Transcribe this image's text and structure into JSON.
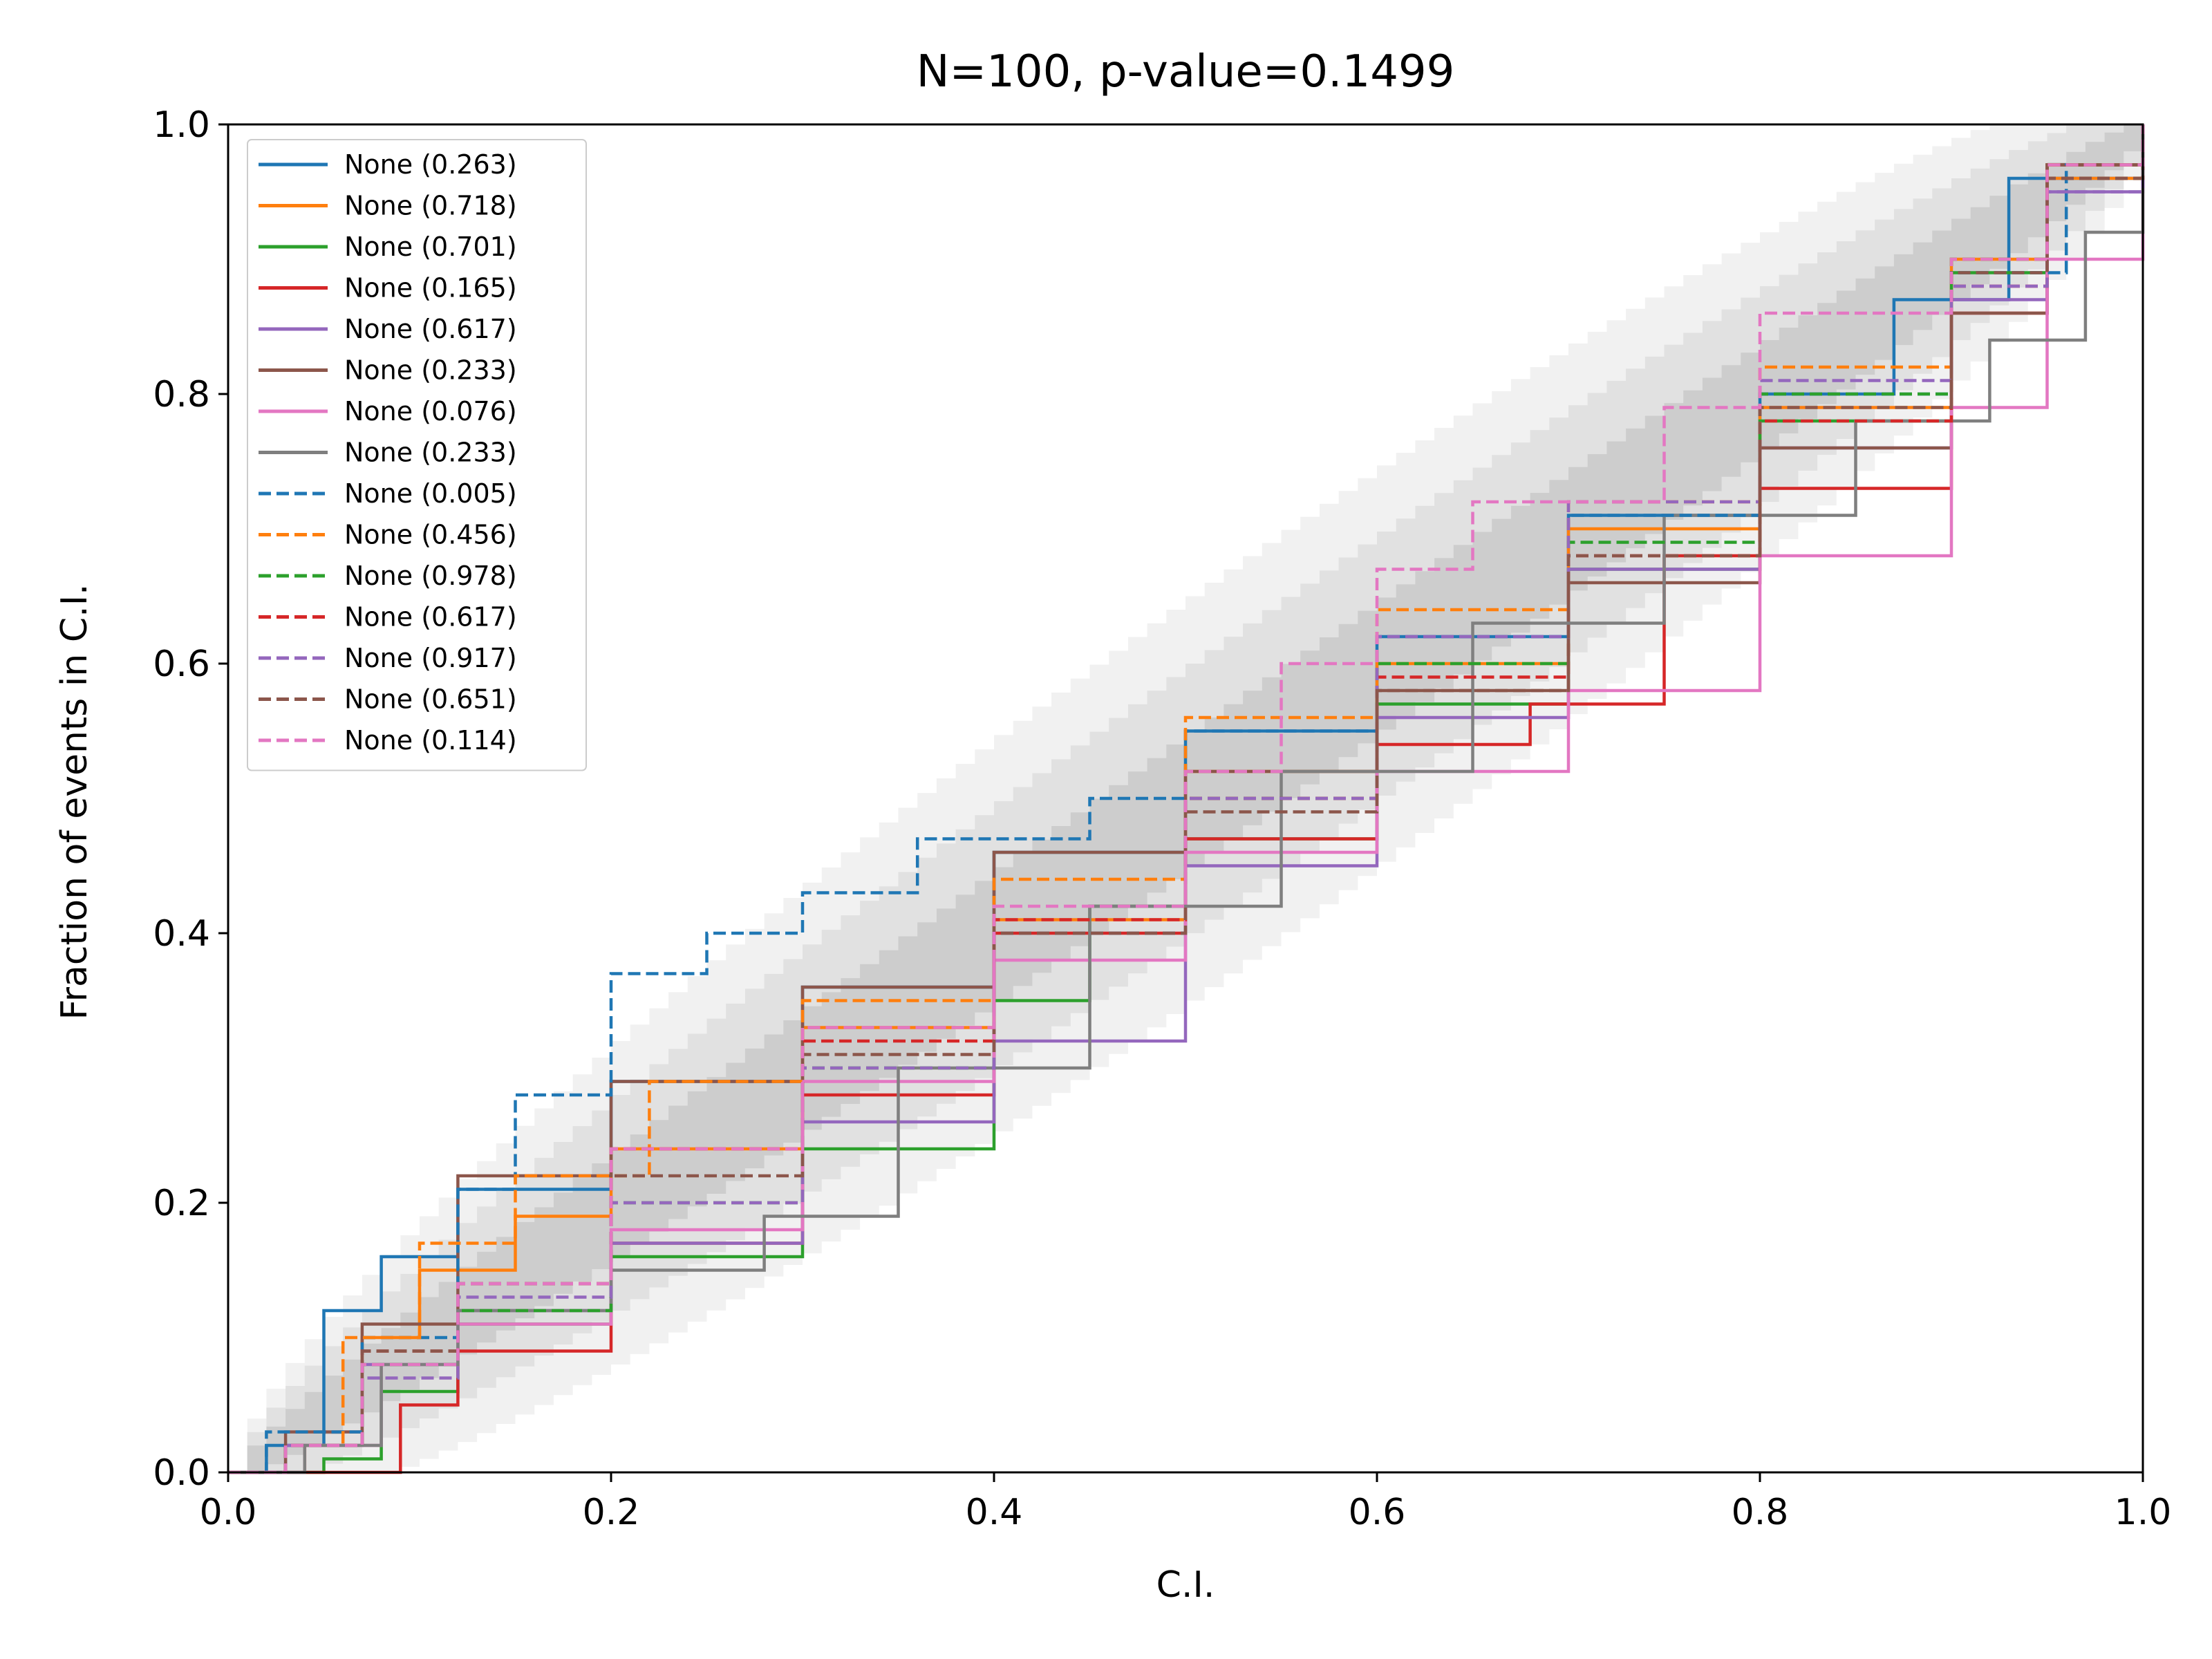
{
  "chart_data": {
    "type": "line",
    "title": "N=100, p-value=0.1499",
    "xlabel": "C.I.",
    "ylabel": "Fraction of events in C.I.",
    "xlim": [
      0.0,
      1.0
    ],
    "ylim": [
      0.0,
      1.0
    ],
    "x_ticks": [
      "0.0",
      "0.2",
      "0.4",
      "0.6",
      "0.8",
      "1.0"
    ],
    "y_ticks": [
      "0.0",
      "0.2",
      "0.4",
      "0.6",
      "0.8",
      "1.0"
    ],
    "grid": false,
    "legend_position": "upper-left",
    "confidence_bands": {
      "n": 100,
      "levels": [
        "1-sigma",
        "2-sigma",
        "3-sigma"
      ],
      "colors": [
        "#bdbdbd",
        "#d3d3d3",
        "#e6e6e6"
      ]
    },
    "series": [
      {
        "name": "None (0.263)",
        "color": "#1f77b4",
        "style": "solid",
        "points": [
          [
            0,
            0
          ],
          [
            0.02,
            0.02
          ],
          [
            0.05,
            0.12
          ],
          [
            0.08,
            0.16
          ],
          [
            0.12,
            0.21
          ],
          [
            0.2,
            0.29
          ],
          [
            0.3,
            0.36
          ],
          [
            0.4,
            0.46
          ],
          [
            0.5,
            0.55
          ],
          [
            0.6,
            0.62
          ],
          [
            0.7,
            0.71
          ],
          [
            0.8,
            0.8
          ],
          [
            0.87,
            0.87
          ],
          [
            0.93,
            0.96
          ],
          [
            1,
            1
          ]
        ]
      },
      {
        "name": "None (0.718)",
        "color": "#ff7f0e",
        "style": "solid",
        "points": [
          [
            0,
            0
          ],
          [
            0.04,
            0.02
          ],
          [
            0.07,
            0.1
          ],
          [
            0.1,
            0.15
          ],
          [
            0.15,
            0.19
          ],
          [
            0.2,
            0.24
          ],
          [
            0.3,
            0.33
          ],
          [
            0.4,
            0.41
          ],
          [
            0.5,
            0.52
          ],
          [
            0.6,
            0.6
          ],
          [
            0.7,
            0.7
          ],
          [
            0.8,
            0.79
          ],
          [
            0.9,
            0.9
          ],
          [
            0.95,
            0.96
          ],
          [
            1,
            1
          ]
        ]
      },
      {
        "name": "None (0.701)",
        "color": "#2ca02c",
        "style": "solid",
        "points": [
          [
            0,
            0
          ],
          [
            0.05,
            0.01
          ],
          [
            0.08,
            0.06
          ],
          [
            0.12,
            0.11
          ],
          [
            0.2,
            0.16
          ],
          [
            0.3,
            0.24
          ],
          [
            0.4,
            0.35
          ],
          [
            0.45,
            0.42
          ],
          [
            0.5,
            0.47
          ],
          [
            0.6,
            0.57
          ],
          [
            0.7,
            0.67
          ],
          [
            0.8,
            0.78
          ],
          [
            0.9,
            0.89
          ],
          [
            0.95,
            0.97
          ],
          [
            1,
            1
          ]
        ]
      },
      {
        "name": "None (0.165)",
        "color": "#d62728",
        "style": "solid",
        "points": [
          [
            0,
            0
          ],
          [
            0.06,
            0.0
          ],
          [
            0.09,
            0.05
          ],
          [
            0.12,
            0.09
          ],
          [
            0.2,
            0.17
          ],
          [
            0.3,
            0.28
          ],
          [
            0.4,
            0.4
          ],
          [
            0.5,
            0.47
          ],
          [
            0.6,
            0.54
          ],
          [
            0.68,
            0.57
          ],
          [
            0.75,
            0.68
          ],
          [
            0.8,
            0.73
          ],
          [
            0.9,
            0.86
          ],
          [
            0.95,
            0.97
          ],
          [
            1,
            1
          ]
        ]
      },
      {
        "name": "None (0.617)",
        "color": "#9467bd",
        "style": "solid",
        "points": [
          [
            0,
            0
          ],
          [
            0.03,
            0.02
          ],
          [
            0.07,
            0.08
          ],
          [
            0.12,
            0.12
          ],
          [
            0.2,
            0.17
          ],
          [
            0.3,
            0.26
          ],
          [
            0.4,
            0.32
          ],
          [
            0.5,
            0.45
          ],
          [
            0.6,
            0.56
          ],
          [
            0.7,
            0.67
          ],
          [
            0.8,
            0.76
          ],
          [
            0.9,
            0.87
          ],
          [
            0.95,
            0.95
          ],
          [
            1,
            1
          ]
        ]
      },
      {
        "name": "None (0.233)",
        "color": "#8c564b",
        "style": "solid",
        "points": [
          [
            0,
            0
          ],
          [
            0.03,
            0.03
          ],
          [
            0.07,
            0.11
          ],
          [
            0.12,
            0.22
          ],
          [
            0.2,
            0.29
          ],
          [
            0.3,
            0.36
          ],
          [
            0.4,
            0.46
          ],
          [
            0.5,
            0.52
          ],
          [
            0.6,
            0.58
          ],
          [
            0.7,
            0.66
          ],
          [
            0.8,
            0.76
          ],
          [
            0.9,
            0.86
          ],
          [
            0.95,
            0.97
          ],
          [
            1,
            1
          ]
        ]
      },
      {
        "name": "None (0.076)",
        "color": "#e377c2",
        "style": "solid",
        "points": [
          [
            0,
            0
          ],
          [
            0.04,
            0.02
          ],
          [
            0.08,
            0.08
          ],
          [
            0.12,
            0.11
          ],
          [
            0.2,
            0.18
          ],
          [
            0.3,
            0.29
          ],
          [
            0.4,
            0.38
          ],
          [
            0.5,
            0.46
          ],
          [
            0.6,
            0.52
          ],
          [
            0.7,
            0.58
          ],
          [
            0.8,
            0.68
          ],
          [
            0.9,
            0.79
          ],
          [
            0.95,
            0.9
          ],
          [
            1,
            1
          ]
        ]
      },
      {
        "name": "None (0.233)",
        "color": "#7f7f7f",
        "style": "solid",
        "points": [
          [
            0,
            0
          ],
          [
            0.04,
            0.02
          ],
          [
            0.08,
            0.08
          ],
          [
            0.12,
            0.12
          ],
          [
            0.2,
            0.15
          ],
          [
            0.28,
            0.19
          ],
          [
            0.35,
            0.3
          ],
          [
            0.45,
            0.42
          ],
          [
            0.55,
            0.52
          ],
          [
            0.65,
            0.63
          ],
          [
            0.75,
            0.71
          ],
          [
            0.85,
            0.78
          ],
          [
            0.92,
            0.84
          ],
          [
            0.97,
            0.92
          ],
          [
            1,
            1
          ]
        ]
      },
      {
        "name": "None (0.005)",
        "color": "#1f77b4",
        "style": "dashed",
        "points": [
          [
            0,
            0
          ],
          [
            0.02,
            0.03
          ],
          [
            0.07,
            0.1
          ],
          [
            0.12,
            0.21
          ],
          [
            0.15,
            0.28
          ],
          [
            0.2,
            0.37
          ],
          [
            0.25,
            0.4
          ],
          [
            0.3,
            0.43
          ],
          [
            0.36,
            0.47
          ],
          [
            0.45,
            0.5
          ],
          [
            0.5,
            0.55
          ],
          [
            0.6,
            0.62
          ],
          [
            0.7,
            0.71
          ],
          [
            0.8,
            0.8
          ],
          [
            0.9,
            0.89
          ],
          [
            0.96,
            0.97
          ],
          [
            1,
            1
          ]
        ]
      },
      {
        "name": "None (0.456)",
        "color": "#ff7f0e",
        "style": "dashed",
        "points": [
          [
            0,
            0
          ],
          [
            0.03,
            0.02
          ],
          [
            0.06,
            0.1
          ],
          [
            0.1,
            0.17
          ],
          [
            0.15,
            0.22
          ],
          [
            0.22,
            0.29
          ],
          [
            0.3,
            0.35
          ],
          [
            0.4,
            0.44
          ],
          [
            0.5,
            0.56
          ],
          [
            0.6,
            0.64
          ],
          [
            0.7,
            0.72
          ],
          [
            0.8,
            0.82
          ],
          [
            0.9,
            0.9
          ],
          [
            0.95,
            0.97
          ],
          [
            1,
            1
          ]
        ]
      },
      {
        "name": "None (0.978)",
        "color": "#2ca02c",
        "style": "dashed",
        "points": [
          [
            0,
            0
          ],
          [
            0.03,
            0.02
          ],
          [
            0.07,
            0.08
          ],
          [
            0.12,
            0.12
          ],
          [
            0.2,
            0.2
          ],
          [
            0.3,
            0.3
          ],
          [
            0.4,
            0.4
          ],
          [
            0.5,
            0.5
          ],
          [
            0.6,
            0.6
          ],
          [
            0.7,
            0.69
          ],
          [
            0.8,
            0.8
          ],
          [
            0.9,
            0.9
          ],
          [
            0.95,
            0.96
          ],
          [
            1,
            1
          ]
        ]
      },
      {
        "name": "None (0.617)",
        "color": "#d62728",
        "style": "dashed",
        "points": [
          [
            0,
            0
          ],
          [
            0.03,
            0.02
          ],
          [
            0.07,
            0.09
          ],
          [
            0.12,
            0.14
          ],
          [
            0.2,
            0.24
          ],
          [
            0.3,
            0.32
          ],
          [
            0.4,
            0.41
          ],
          [
            0.5,
            0.5
          ],
          [
            0.6,
            0.59
          ],
          [
            0.7,
            0.68
          ],
          [
            0.8,
            0.78
          ],
          [
            0.9,
            0.88
          ],
          [
            0.95,
            0.96
          ],
          [
            1,
            1
          ]
        ]
      },
      {
        "name": "None (0.917)",
        "color": "#9467bd",
        "style": "dashed",
        "points": [
          [
            0,
            0
          ],
          [
            0.03,
            0.02
          ],
          [
            0.07,
            0.07
          ],
          [
            0.12,
            0.13
          ],
          [
            0.2,
            0.2
          ],
          [
            0.3,
            0.3
          ],
          [
            0.4,
            0.4
          ],
          [
            0.5,
            0.5
          ],
          [
            0.6,
            0.62
          ],
          [
            0.7,
            0.72
          ],
          [
            0.8,
            0.81
          ],
          [
            0.9,
            0.88
          ],
          [
            0.95,
            0.95
          ],
          [
            1,
            1
          ]
        ]
      },
      {
        "name": "None (0.651)",
        "color": "#8c564b",
        "style": "dashed",
        "points": [
          [
            0,
            0
          ],
          [
            0.03,
            0.02
          ],
          [
            0.07,
            0.09
          ],
          [
            0.12,
            0.14
          ],
          [
            0.2,
            0.22
          ],
          [
            0.3,
            0.31
          ],
          [
            0.4,
            0.4
          ],
          [
            0.5,
            0.49
          ],
          [
            0.6,
            0.58
          ],
          [
            0.7,
            0.68
          ],
          [
            0.8,
            0.79
          ],
          [
            0.9,
            0.89
          ],
          [
            0.95,
            0.96
          ],
          [
            1,
            1
          ]
        ]
      },
      {
        "name": "None (0.114)",
        "color": "#e377c2",
        "style": "dashed",
        "points": [
          [
            0,
            0
          ],
          [
            0.03,
            0.02
          ],
          [
            0.07,
            0.08
          ],
          [
            0.12,
            0.14
          ],
          [
            0.2,
            0.24
          ],
          [
            0.3,
            0.33
          ],
          [
            0.4,
            0.42
          ],
          [
            0.5,
            0.52
          ],
          [
            0.55,
            0.6
          ],
          [
            0.6,
            0.67
          ],
          [
            0.65,
            0.72
          ],
          [
            0.75,
            0.79
          ],
          [
            0.8,
            0.86
          ],
          [
            0.9,
            0.9
          ],
          [
            0.95,
            0.97
          ],
          [
            1,
            1
          ]
        ]
      }
    ]
  }
}
